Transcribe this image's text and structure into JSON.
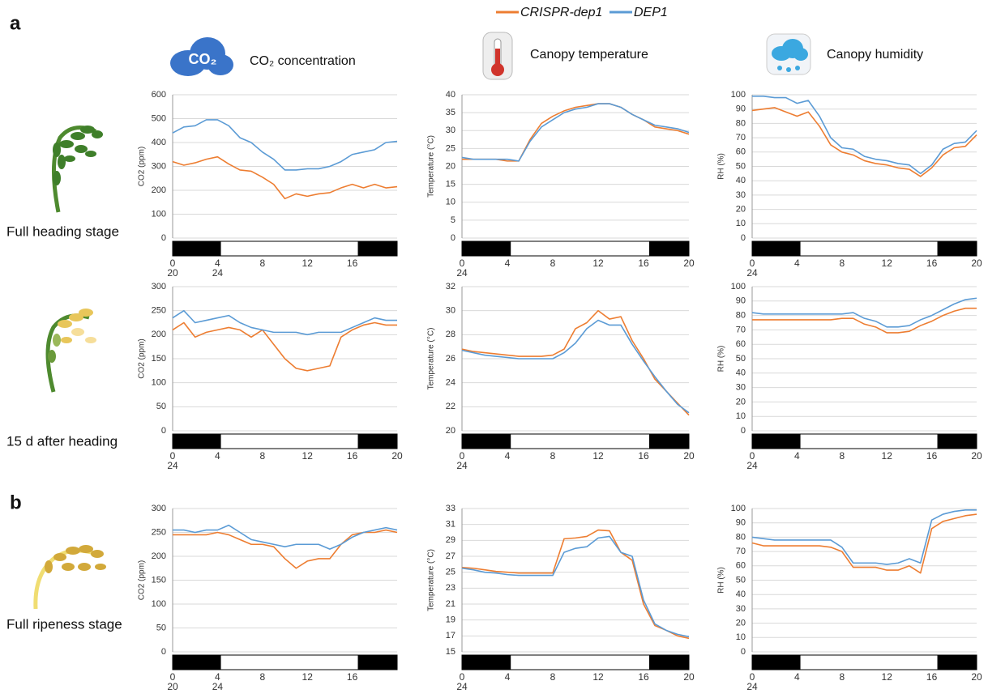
{
  "panel_labels": [
    "a",
    "b"
  ],
  "legend": {
    "series": [
      {
        "name": "CRISPR-dep1",
        "color": "#ED7D31"
      },
      {
        "name": "DEP1",
        "color": "#5B9BD5"
      }
    ]
  },
  "column_headers": [
    "CO₂ concentration",
    "Canopy  temperature",
    "Canopy humidity"
  ],
  "co2_icon": "CO₂",
  "row_labels": [
    "Full heading stage",
    "15 d after heading",
    "Full ripeness stage"
  ],
  "chart_data": [
    {
      "type": "line",
      "y_label": "CO2 (ppm)",
      "x": [
        0,
        1,
        2,
        3,
        4,
        5,
        6,
        7,
        8,
        9,
        10,
        11,
        12,
        13,
        14,
        15,
        16,
        17,
        18,
        19,
        20
      ],
      "xlim": [
        0,
        20
      ],
      "xticks": [
        0,
        4,
        8,
        12,
        16
      ],
      "x_sublabels": [
        {
          "value": 0,
          "label": "20"
        },
        {
          "value": 4,
          "label": "24"
        }
      ],
      "ylim": [
        0,
        600
      ],
      "yticks": [
        0,
        100,
        200,
        300,
        400,
        500,
        600
      ],
      "dark_periods": [
        [
          0,
          4.3
        ],
        [
          16.5,
          20
        ]
      ],
      "grid": true,
      "series": [
        {
          "name": "CRISPR-dep1",
          "color": "#ED7D31",
          "values": [
            320,
            305,
            315,
            330,
            340,
            310,
            285,
            280,
            255,
            225,
            165,
            185,
            175,
            185,
            190,
            210,
            225,
            210,
            225,
            210,
            215
          ]
        },
        {
          "name": "DEP1",
          "color": "#5B9BD5",
          "values": [
            440,
            465,
            470,
            495,
            495,
            470,
            420,
            400,
            360,
            330,
            285,
            285,
            290,
            290,
            300,
            320,
            350,
            360,
            370,
            400,
            405
          ]
        }
      ]
    },
    {
      "type": "line",
      "y_label": "Temperature (°C)",
      "x": [
        0,
        1,
        2,
        3,
        4,
        5,
        6,
        7,
        8,
        9,
        10,
        11,
        12,
        13,
        14,
        15,
        16,
        17,
        18,
        19,
        20
      ],
      "xlim": [
        0,
        20
      ],
      "xticks": [
        0,
        4,
        8,
        12,
        16,
        20
      ],
      "x_sublabels": [
        {
          "value": 0,
          "label": "24"
        }
      ],
      "ylim": [
        0,
        40
      ],
      "yticks": [
        0,
        5,
        10,
        15,
        20,
        25,
        30,
        35,
        40
      ],
      "dark_periods": [
        [
          0,
          4.3
        ],
        [
          16.5,
          20
        ]
      ],
      "grid": true,
      "series": [
        {
          "name": "CRISPR-dep1",
          "color": "#ED7D31",
          "values": [
            22,
            22,
            22,
            22,
            21.5,
            21.5,
            27.5,
            32,
            34,
            35.5,
            36.5,
            37,
            37.5,
            37.5,
            36.5,
            34.5,
            33,
            31,
            30.5,
            30,
            29
          ]
        },
        {
          "name": "DEP1",
          "color": "#5B9BD5",
          "values": [
            22.5,
            22,
            22,
            22,
            22,
            21.5,
            27,
            31,
            33,
            35,
            36,
            36.5,
            37.5,
            37.5,
            36.5,
            34.5,
            33,
            31.5,
            31,
            30.5,
            29.5
          ]
        }
      ]
    },
    {
      "type": "line",
      "y_label": "RH (%)",
      "x": [
        0,
        1,
        2,
        3,
        4,
        5,
        6,
        7,
        8,
        9,
        10,
        11,
        12,
        13,
        14,
        15,
        16,
        17,
        18,
        19,
        20
      ],
      "xlim": [
        0,
        20
      ],
      "xticks": [
        0,
        4,
        8,
        12,
        16,
        20
      ],
      "x_sublabels": [
        {
          "value": 0,
          "label": "24"
        }
      ],
      "ylim": [
        0,
        100
      ],
      "yticks": [
        0,
        10,
        20,
        30,
        40,
        50,
        60,
        70,
        80,
        90,
        100
      ],
      "dark_periods": [
        [
          0,
          4.3
        ],
        [
          16.5,
          20
        ]
      ],
      "grid": true,
      "series": [
        {
          "name": "CRISPR-dep1",
          "color": "#ED7D31",
          "values": [
            89,
            90,
            91,
            88,
            85,
            88,
            78,
            65,
            60,
            58,
            54,
            52,
            51,
            49,
            48,
            43,
            49,
            58,
            63,
            64,
            72
          ]
        },
        {
          "name": "DEP1",
          "color": "#5B9BD5",
          "values": [
            99,
            99,
            98,
            98,
            94,
            96,
            85,
            70,
            63,
            62,
            57,
            55,
            54,
            52,
            51,
            45,
            51,
            62,
            66,
            67,
            75
          ]
        }
      ]
    },
    {
      "type": "line",
      "y_label": "CO2 (ppm)",
      "x": [
        0,
        1,
        2,
        3,
        4,
        5,
        6,
        7,
        8,
        9,
        10,
        11,
        12,
        13,
        14,
        15,
        16,
        17,
        18,
        19,
        20
      ],
      "xlim": [
        0,
        20
      ],
      "xticks": [
        0,
        4,
        8,
        12,
        16,
        20
      ],
      "x_sublabels": [
        {
          "value": 0,
          "label": "24"
        }
      ],
      "ylim": [
        0,
        300
      ],
      "yticks": [
        0,
        50,
        100,
        150,
        200,
        250,
        300
      ],
      "dark_periods": [
        [
          0,
          4.3
        ],
        [
          16.5,
          20
        ]
      ],
      "grid": true,
      "series": [
        {
          "name": "CRISPR-dep1",
          "color": "#ED7D31",
          "values": [
            210,
            225,
            195,
            205,
            210,
            215,
            210,
            195,
            210,
            180,
            150,
            130,
            125,
            130,
            135,
            195,
            210,
            220,
            225,
            220,
            220
          ]
        },
        {
          "name": "DEP1",
          "color": "#5B9BD5",
          "values": [
            235,
            250,
            225,
            230,
            235,
            240,
            225,
            215,
            210,
            205,
            205,
            205,
            200,
            205,
            205,
            205,
            215,
            225,
            235,
            230,
            230
          ]
        }
      ]
    },
    {
      "type": "line",
      "y_label": "Temperature (°C)",
      "x": [
        0,
        1,
        2,
        3,
        4,
        5,
        6,
        7,
        8,
        9,
        10,
        11,
        12,
        13,
        14,
        15,
        16,
        17,
        18,
        19,
        20
      ],
      "xlim": [
        0,
        20
      ],
      "xticks": [
        0,
        4,
        8,
        12,
        16,
        20
      ],
      "x_sublabels": [
        {
          "value": 0,
          "label": "24"
        }
      ],
      "ylim": [
        20,
        32
      ],
      "yticks": [
        20,
        22,
        24,
        26,
        28,
        30,
        32
      ],
      "dark_periods": [
        [
          0,
          4.3
        ],
        [
          16.5,
          20
        ]
      ],
      "grid": true,
      "series": [
        {
          "name": "CRISPR-dep1",
          "color": "#ED7D31",
          "values": [
            26.8,
            26.6,
            26.5,
            26.4,
            26.3,
            26.2,
            26.2,
            26.2,
            26.3,
            26.8,
            28.5,
            29,
            30,
            29.3,
            29.5,
            27.5,
            26,
            24.3,
            23.3,
            22.3,
            21.3
          ]
        },
        {
          "name": "DEP1",
          "color": "#5B9BD5",
          "values": [
            26.7,
            26.5,
            26.3,
            26.2,
            26.1,
            26,
            26,
            26,
            26,
            26.5,
            27.3,
            28.5,
            29.2,
            28.8,
            28.8,
            27.2,
            25.8,
            24.5,
            23.3,
            22.2,
            21.5
          ]
        }
      ]
    },
    {
      "type": "line",
      "y_label": "RH (%)",
      "x": [
        0,
        1,
        2,
        3,
        4,
        5,
        6,
        7,
        8,
        9,
        10,
        11,
        12,
        13,
        14,
        15,
        16,
        17,
        18,
        19,
        20
      ],
      "xlim": [
        0,
        20
      ],
      "xticks": [
        0,
        4,
        8,
        12,
        16,
        20
      ],
      "x_sublabels": [
        {
          "value": 0,
          "label": "24"
        }
      ],
      "ylim": [
        0,
        100
      ],
      "yticks": [
        0,
        10,
        20,
        30,
        40,
        50,
        60,
        70,
        80,
        90,
        100
      ],
      "dark_periods": [
        [
          0,
          4.3
        ],
        [
          16.5,
          20
        ]
      ],
      "grid": true,
      "series": [
        {
          "name": "CRISPR-dep1",
          "color": "#ED7D31",
          "values": [
            77,
            77,
            77,
            77,
            77,
            77,
            77,
            77,
            78,
            78,
            74,
            72,
            68,
            68,
            69,
            73,
            76,
            80,
            83,
            85,
            85
          ]
        },
        {
          "name": "DEP1",
          "color": "#5B9BD5",
          "values": [
            82,
            81,
            81,
            81,
            81,
            81,
            81,
            81,
            81,
            82,
            78,
            76,
            72,
            72,
            73,
            77,
            80,
            84,
            88,
            91,
            92
          ]
        }
      ]
    },
    {
      "type": "line",
      "y_label": "CO2 (ppm)",
      "x": [
        0,
        1,
        2,
        3,
        4,
        5,
        6,
        7,
        8,
        9,
        10,
        11,
        12,
        13,
        14,
        15,
        16,
        17,
        18,
        19,
        20
      ],
      "xlim": [
        0,
        20
      ],
      "xticks": [
        0,
        4,
        8,
        12,
        16
      ],
      "x_sublabels": [
        {
          "value": 0,
          "label": "20"
        },
        {
          "value": 4,
          "label": "24"
        }
      ],
      "ylim": [
        0,
        300
      ],
      "yticks": [
        0,
        50,
        100,
        150,
        200,
        250,
        300
      ],
      "dark_periods": [
        [
          0,
          4.3
        ],
        [
          16.5,
          20
        ]
      ],
      "grid": true,
      "series": [
        {
          "name": "CRISPR-dep1",
          "color": "#ED7D31",
          "values": [
            245,
            245,
            245,
            245,
            250,
            245,
            235,
            225,
            225,
            220,
            195,
            175,
            190,
            195,
            195,
            225,
            245,
            250,
            250,
            255,
            250
          ]
        },
        {
          "name": "DEP1",
          "color": "#5B9BD5",
          "values": [
            255,
            255,
            250,
            255,
            255,
            265,
            250,
            235,
            230,
            225,
            220,
            225,
            225,
            225,
            215,
            225,
            240,
            250,
            255,
            260,
            255
          ]
        }
      ]
    },
    {
      "type": "line",
      "y_label": "Temperature (°C)",
      "x": [
        0,
        1,
        2,
        3,
        4,
        5,
        6,
        7,
        8,
        9,
        10,
        11,
        12,
        13,
        14,
        15,
        16,
        17,
        18,
        19,
        20
      ],
      "xlim": [
        0,
        20
      ],
      "xticks": [
        0,
        4,
        8,
        12,
        16,
        20
      ],
      "x_sublabels": [
        {
          "value": 0,
          "label": "24"
        }
      ],
      "ylim": [
        15,
        33
      ],
      "yticks": [
        15,
        17,
        19,
        21,
        23,
        25,
        27,
        29,
        31,
        33
      ],
      "dark_periods": [
        [
          0,
          4.3
        ],
        [
          16.5,
          20
        ]
      ],
      "grid": true,
      "series": [
        {
          "name": "CRISPR-dep1",
          "color": "#ED7D31",
          "values": [
            25.6,
            25.5,
            25.3,
            25.1,
            25,
            24.9,
            24.9,
            24.9,
            24.9,
            29.2,
            29.3,
            29.5,
            30.3,
            30.2,
            27.5,
            26.5,
            21,
            18.3,
            17.7,
            17,
            16.7
          ]
        },
        {
          "name": "DEP1",
          "color": "#5B9BD5",
          "values": [
            25.5,
            25.3,
            25,
            24.9,
            24.7,
            24.6,
            24.6,
            24.6,
            24.6,
            27.5,
            28,
            28.2,
            29.3,
            29.5,
            27.5,
            27,
            21.5,
            18.5,
            17.7,
            17.2,
            16.9
          ]
        }
      ]
    },
    {
      "type": "line",
      "y_label": "RH (%)",
      "x": [
        0,
        1,
        2,
        3,
        4,
        5,
        6,
        7,
        8,
        9,
        10,
        11,
        12,
        13,
        14,
        15,
        16,
        17,
        18,
        19,
        20
      ],
      "xlim": [
        0,
        20
      ],
      "xticks": [
        0,
        4,
        8,
        12,
        16,
        20
      ],
      "x_sublabels": [
        {
          "value": 0,
          "label": "24"
        }
      ],
      "ylim": [
        0,
        100
      ],
      "yticks": [
        0,
        10,
        20,
        30,
        40,
        50,
        60,
        70,
        80,
        90,
        100
      ],
      "dark_periods": [
        [
          0,
          4.3
        ],
        [
          16.5,
          20
        ]
      ],
      "grid": true,
      "series": [
        {
          "name": "CRISPR-dep1",
          "color": "#ED7D31",
          "values": [
            76,
            74,
            74,
            74,
            74,
            74,
            74,
            73,
            70,
            59,
            59,
            59,
            57,
            57,
            60,
            55,
            86,
            91,
            93,
            95,
            96
          ]
        },
        {
          "name": "DEP1",
          "color": "#5B9BD5",
          "values": [
            80,
            79,
            78,
            78,
            78,
            78,
            78,
            78,
            73,
            62,
            62,
            62,
            61,
            62,
            65,
            62,
            92,
            96,
            98,
            99,
            99
          ]
        }
      ]
    }
  ]
}
